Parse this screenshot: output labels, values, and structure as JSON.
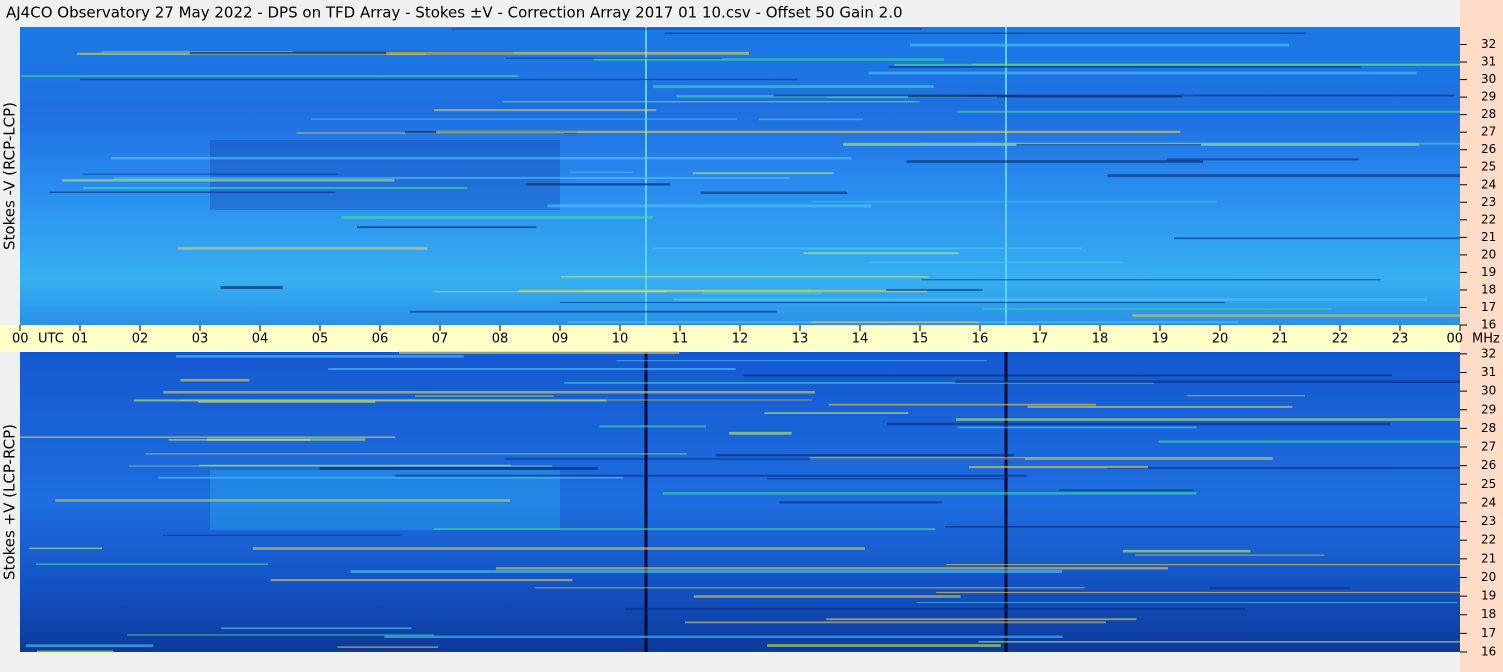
{
  "chart_data": {
    "type": "spectrogram",
    "title": "AJ4CO Observatory  27 May 2022  -  DPS on TFD Array  -  Stokes ±V  -  Correction Array 2017 01 10.csv  -  Offset 50  Gain 2.0",
    "x_unit": "UTC",
    "y_unit": "MHz",
    "xlim": [
      0,
      24
    ],
    "xticks": [
      {
        "value": 0,
        "label": "00"
      },
      {
        "value": 1,
        "label": "01"
      },
      {
        "value": 2,
        "label": "02"
      },
      {
        "value": 3,
        "label": "03"
      },
      {
        "value": 4,
        "label": "04"
      },
      {
        "value": 5,
        "label": "05"
      },
      {
        "value": 6,
        "label": "06"
      },
      {
        "value": 7,
        "label": "07"
      },
      {
        "value": 8,
        "label": "08"
      },
      {
        "value": 9,
        "label": "09"
      },
      10,
      11,
      12,
      13,
      14,
      15,
      16,
      17,
      18,
      19,
      20,
      21,
      22,
      23,
      {
        "value": 24,
        "label": "00"
      }
    ],
    "panels": [
      {
        "ylabel": "Stokes -V (RCP-LCP)",
        "ylim": [
          16,
          33
        ],
        "yticks": [
          16,
          17,
          18,
          19,
          20,
          21,
          22,
          23,
          24,
          25,
          26,
          27,
          28,
          29,
          30,
          31,
          32
        ]
      },
      {
        "ylabel": "Stokes +V (LCP-RCP)",
        "ylim": [
          16,
          32.1
        ],
        "yticks": [
          16,
          17,
          18,
          19,
          20,
          21,
          22,
          23,
          24,
          25,
          26,
          27,
          28,
          29,
          30,
          31,
          32
        ]
      }
    ]
  }
}
